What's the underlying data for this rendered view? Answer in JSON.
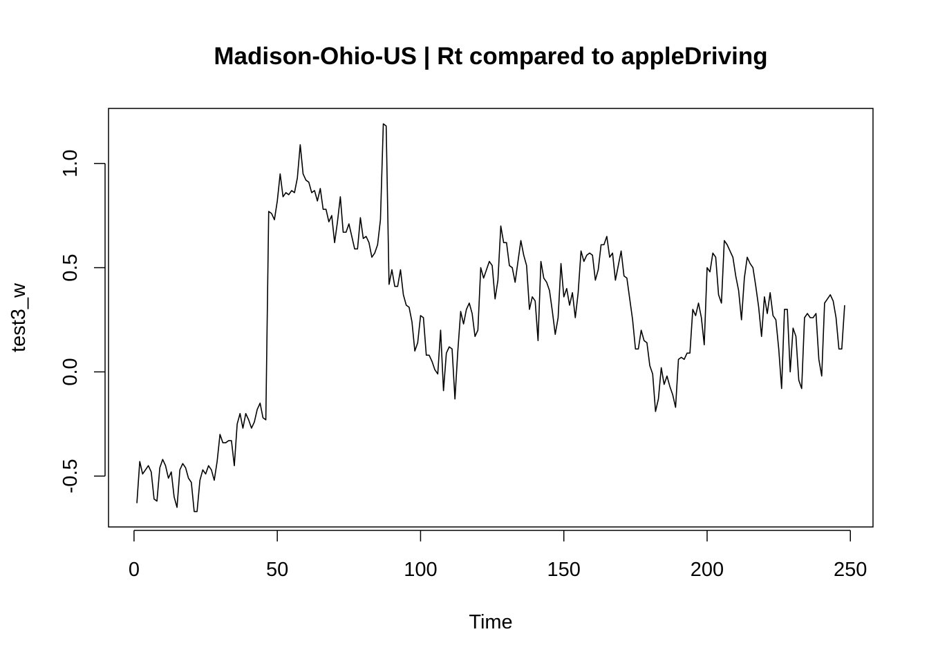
{
  "chart_data": {
    "type": "line",
    "title": "Madison-Ohio-US | Rt compared to appleDriving",
    "xlabel": "Time",
    "ylabel": "test3_w",
    "xlim": [
      -8.9,
      257.9
    ],
    "ylim": [
      -0.744,
      1.264
    ],
    "x_ticks": [
      0,
      50,
      100,
      150,
      200,
      250
    ],
    "x_tick_labels": [
      "0",
      "50",
      "100",
      "150",
      "200",
      "250"
    ],
    "y_ticks": [
      -0.5,
      0.0,
      0.5,
      1.0
    ],
    "y_tick_labels": [
      "-0.5",
      "0.0",
      "0.5",
      "1.0"
    ],
    "grid": false,
    "line_color": "#000000",
    "series": [
      {
        "x_start": 1,
        "x_step": 1,
        "values": [
          -0.63,
          -0.43,
          -0.49,
          -0.47,
          -0.45,
          -0.48,
          -0.61,
          -0.62,
          -0.46,
          -0.42,
          -0.45,
          -0.51,
          -0.48,
          -0.6,
          -0.65,
          -0.47,
          -0.44,
          -0.46,
          -0.51,
          -0.53,
          -0.67,
          -0.67,
          -0.52,
          -0.47,
          -0.49,
          -0.45,
          -0.47,
          -0.52,
          -0.43,
          -0.3,
          -0.34,
          -0.34,
          -0.33,
          -0.33,
          -0.45,
          -0.25,
          -0.2,
          -0.27,
          -0.2,
          -0.23,
          -0.27,
          -0.24,
          -0.18,
          -0.15,
          -0.22,
          -0.23,
          0.77,
          0.76,
          0.73,
          0.82,
          0.95,
          0.84,
          0.86,
          0.85,
          0.87,
          0.86,
          0.93,
          1.09,
          0.95,
          0.92,
          0.91,
          0.86,
          0.87,
          0.82,
          0.88,
          0.78,
          0.78,
          0.72,
          0.75,
          0.62,
          0.72,
          0.84,
          0.67,
          0.67,
          0.71,
          0.65,
          0.59,
          0.59,
          0.74,
          0.64,
          0.65,
          0.62,
          0.55,
          0.57,
          0.61,
          0.73,
          1.19,
          1.18,
          0.42,
          0.49,
          0.41,
          0.41,
          0.49,
          0.37,
          0.32,
          0.31,
          0.24,
          0.1,
          0.14,
          0.27,
          0.26,
          0.08,
          0.08,
          0.05,
          0.01,
          -0.01,
          0.2,
          -0.09,
          0.09,
          0.12,
          0.11,
          -0.13,
          0.1,
          0.29,
          0.23,
          0.3,
          0.33,
          0.28,
          0.17,
          0.2,
          0.5,
          0.45,
          0.49,
          0.53,
          0.51,
          0.35,
          0.44,
          0.7,
          0.62,
          0.62,
          0.51,
          0.5,
          0.43,
          0.53,
          0.63,
          0.56,
          0.51,
          0.3,
          0.36,
          0.34,
          0.15,
          0.53,
          0.45,
          0.43,
          0.39,
          0.29,
          0.18,
          0.26,
          0.52,
          0.36,
          0.4,
          0.32,
          0.38,
          0.26,
          0.38,
          0.58,
          0.53,
          0.56,
          0.57,
          0.56,
          0.44,
          0.49,
          0.61,
          0.61,
          0.65,
          0.55,
          0.57,
          0.44,
          0.51,
          0.58,
          0.46,
          0.45,
          0.35,
          0.25,
          0.11,
          0.11,
          0.2,
          0.15,
          0.14,
          0.03,
          -0.01,
          -0.19,
          -0.13,
          0.02,
          -0.06,
          -0.02,
          -0.07,
          -0.11,
          -0.17,
          0.06,
          0.07,
          0.06,
          0.09,
          0.09,
          0.3,
          0.27,
          0.33,
          0.26,
          0.13,
          0.5,
          0.48,
          0.57,
          0.55,
          0.37,
          0.33,
          0.63,
          0.61,
          0.58,
          0.55,
          0.46,
          0.39,
          0.25,
          0.45,
          0.55,
          0.52,
          0.5,
          0.41,
          0.31,
          0.17,
          0.36,
          0.28,
          0.38,
          0.27,
          0.25,
          0.11,
          -0.08,
          0.3,
          0.3,
          0.0,
          0.21,
          0.17,
          -0.04,
          -0.08,
          0.26,
          0.28,
          0.26,
          0.26,
          0.28,
          0.06,
          -0.02,
          0.33,
          0.35,
          0.37,
          0.34,
          0.26,
          0.11,
          0.11,
          0.32
        ]
      }
    ]
  }
}
